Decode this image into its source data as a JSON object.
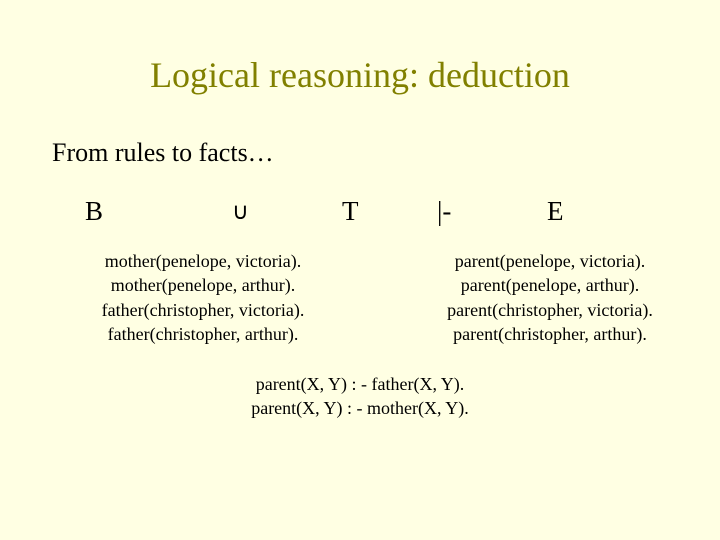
{
  "title": "Logical reasoning: deduction",
  "subtitle": "From rules to facts…",
  "formula": {
    "B": "B",
    "union": "∪",
    "T": "T",
    "turnstile": "|-",
    "E": "E"
  },
  "left_facts": [
    "mother(penelope, victoria).",
    "mother(penelope, arthur).",
    "father(christopher, victoria).",
    "father(christopher, arthur)."
  ],
  "right_facts": [
    "parent(penelope, victoria).",
    "parent(penelope, arthur).",
    "parent(christopher, victoria).",
    "parent(christopher, arthur)."
  ],
  "rules": [
    "parent(X, Y) : - father(X, Y).",
    "parent(X, Y) : - mother(X, Y)."
  ],
  "colors": {
    "background": "#ffffe3",
    "title": "#818000",
    "text": "#000000"
  }
}
